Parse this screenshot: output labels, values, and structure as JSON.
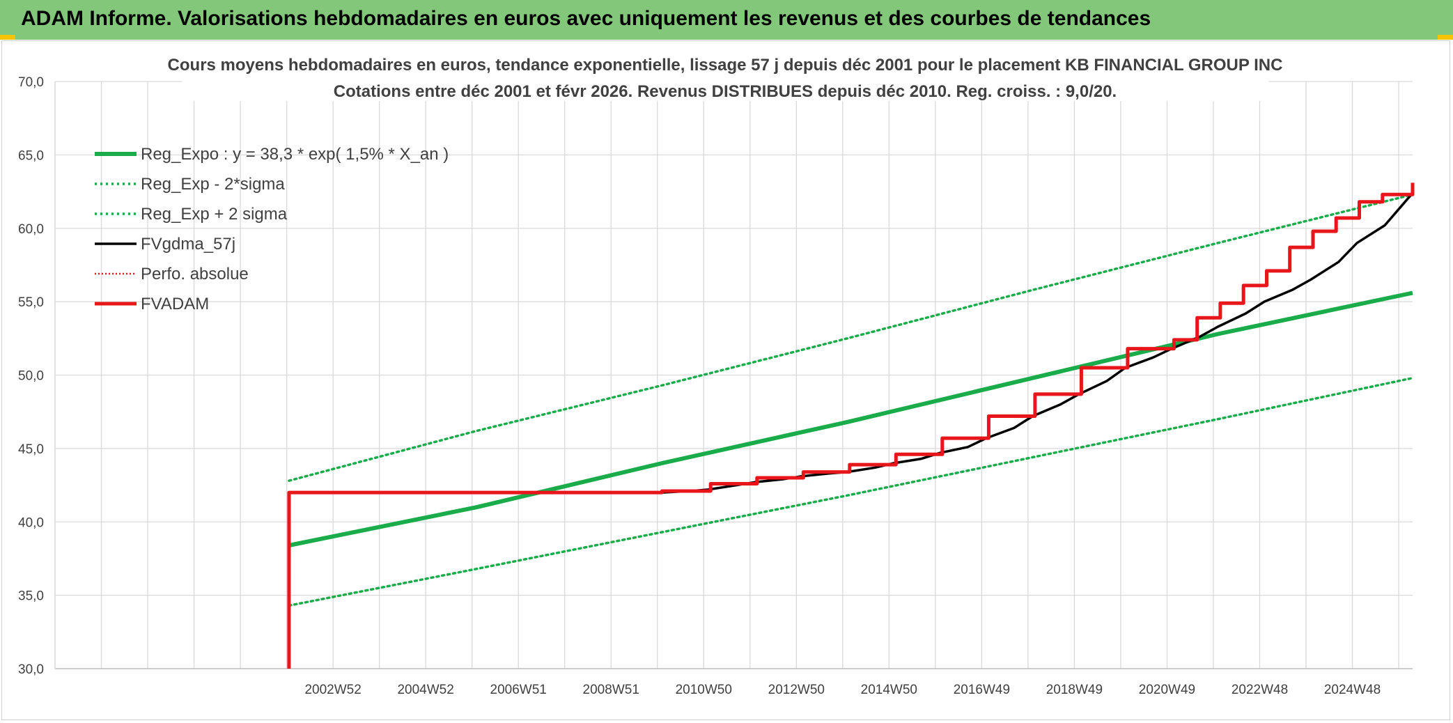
{
  "header": {
    "title": "ADAM Informe. Valorisations hebdomadaires en euros avec uniquement les revenus et des courbes de tendances"
  },
  "colors": {
    "banner": "#83c87a",
    "accent": "#f5c400",
    "reg_green": "#1aac4a",
    "fv_black": "#000000",
    "fvadam_red": "#e8151b",
    "grid": "#d9d9d9"
  },
  "chart_data": {
    "type": "line",
    "title": "Cours moyens hebdomadaires en euros, tendance exponentielle, lissage 57 j depuis déc 2001 pour le placement KB FINANCIAL GROUP INC",
    "subtitle": "Cotations entre déc 2001 et févr 2026. Revenus DISTRIBUES depuis déc 2010. Reg. croiss. : 9,0/20.",
    "ylim": [
      30,
      70
    ],
    "yticks": [
      "30,0",
      "35,0",
      "40,0",
      "45,0",
      "50,0",
      "55,0",
      "60,0",
      "65,0",
      "70,0"
    ],
    "yvalues": [
      30,
      35,
      40,
      45,
      50,
      55,
      60,
      65,
      70
    ],
    "xlim": [
      1996.9,
      2026.2
    ],
    "xtick_labels": [
      "2002W52",
      "2004W52",
      "2006W51",
      "2008W51",
      "2010W50",
      "2012W50",
      "2014W50",
      "2016W49",
      "2018W49",
      "2020W49",
      "2022W48",
      "2024W48"
    ],
    "xtick_values": [
      2002.9,
      2004.9,
      2006.9,
      2008.9,
      2010.9,
      2012.9,
      2014.9,
      2016.9,
      2018.9,
      2020.9,
      2022.9,
      2024.9
    ],
    "grid": true,
    "legend_position": "top-left",
    "series": [
      {
        "name": "Reg_Expo : y = 38,3 * exp( 1,5% *  X_an )",
        "style": "solid-thick",
        "color": "#1aac4a",
        "x": [
          2001.95,
          2006.0,
          2010.0,
          2014.0,
          2018.0,
          2022.0,
          2026.2
        ],
        "y": [
          38.4,
          41.0,
          44.0,
          46.8,
          49.8,
          52.8,
          55.6
        ]
      },
      {
        "name": "Reg_Exp - 2*sigma",
        "style": "dotted",
        "color": "#1aac4a",
        "x": [
          2001.95,
          2006.0,
          2010.0,
          2014.0,
          2018.0,
          2022.0,
          2026.2
        ],
        "y": [
          34.3,
          36.8,
          39.3,
          41.8,
          44.4,
          47.0,
          49.8
        ]
      },
      {
        "name": "Reg_Exp + 2 sigma",
        "style": "dotted",
        "color": "#1aac4a",
        "x": [
          2001.95,
          2006.0,
          2010.0,
          2014.0,
          2018.0,
          2022.0,
          2026.2
        ],
        "y": [
          42.8,
          46.2,
          49.3,
          52.5,
          55.8,
          59.0,
          62.3
        ]
      },
      {
        "name": "FVgdma_57j",
        "style": "solid",
        "color": "#000000",
        "x": [
          2001.95,
          2001.96,
          2010.0,
          2010.6,
          2011.0,
          2011.6,
          2012.0,
          2012.6,
          2013.0,
          2013.6,
          2014.0,
          2014.6,
          2015.0,
          2015.6,
          2016.0,
          2016.6,
          2017.0,
          2017.6,
          2018.0,
          2018.6,
          2019.0,
          2019.6,
          2020.0,
          2020.6,
          2021.0,
          2021.6,
          2022.0,
          2022.6,
          2023.0,
          2023.6,
          2024.0,
          2024.6,
          2025.0,
          2025.6,
          2026.2
        ],
        "y": [
          30.0,
          42.0,
          42.0,
          42.1,
          42.2,
          42.5,
          42.7,
          42.9,
          43.1,
          43.3,
          43.4,
          43.7,
          44.0,
          44.3,
          44.7,
          45.1,
          45.7,
          46.4,
          47.2,
          48.0,
          48.7,
          49.6,
          50.5,
          51.2,
          51.8,
          52.6,
          53.3,
          54.2,
          55.0,
          55.8,
          56.5,
          57.7,
          59.0,
          60.2,
          62.4
        ]
      },
      {
        "name": "Perfo. absolue",
        "style": "dotted-thin",
        "color": "#e8151b",
        "x": [],
        "y": []
      },
      {
        "name": "FVADAM",
        "style": "step",
        "color": "#e8151b",
        "x": [
          2001.95,
          2001.95,
          2010.0,
          2010.0,
          2011.05,
          2011.05,
          2012.05,
          2012.05,
          2013.05,
          2013.05,
          2014.05,
          2014.05,
          2015.05,
          2015.05,
          2016.05,
          2016.05,
          2017.05,
          2017.05,
          2018.05,
          2018.05,
          2019.05,
          2019.05,
          2020.05,
          2020.05,
          2021.05,
          2021.05,
          2021.55,
          2021.55,
          2022.05,
          2022.05,
          2022.55,
          2022.55,
          2023.05,
          2023.05,
          2023.55,
          2023.55,
          2024.05,
          2024.05,
          2024.55,
          2024.55,
          2025.05,
          2025.05,
          2025.55,
          2025.55,
          2026.2,
          2026.2
        ],
        "y": [
          30.0,
          42.0,
          42.0,
          42.1,
          42.1,
          42.6,
          42.6,
          43.0,
          43.0,
          43.4,
          43.4,
          43.9,
          43.9,
          44.6,
          44.6,
          45.7,
          45.7,
          47.2,
          47.2,
          48.7,
          48.7,
          50.5,
          50.5,
          51.8,
          51.8,
          52.4,
          52.4,
          53.9,
          53.9,
          54.9,
          54.9,
          56.1,
          56.1,
          57.1,
          57.1,
          58.7,
          58.7,
          59.8,
          59.8,
          60.7,
          60.7,
          61.8,
          61.8,
          62.3,
          62.3,
          63.1
        ]
      }
    ]
  }
}
